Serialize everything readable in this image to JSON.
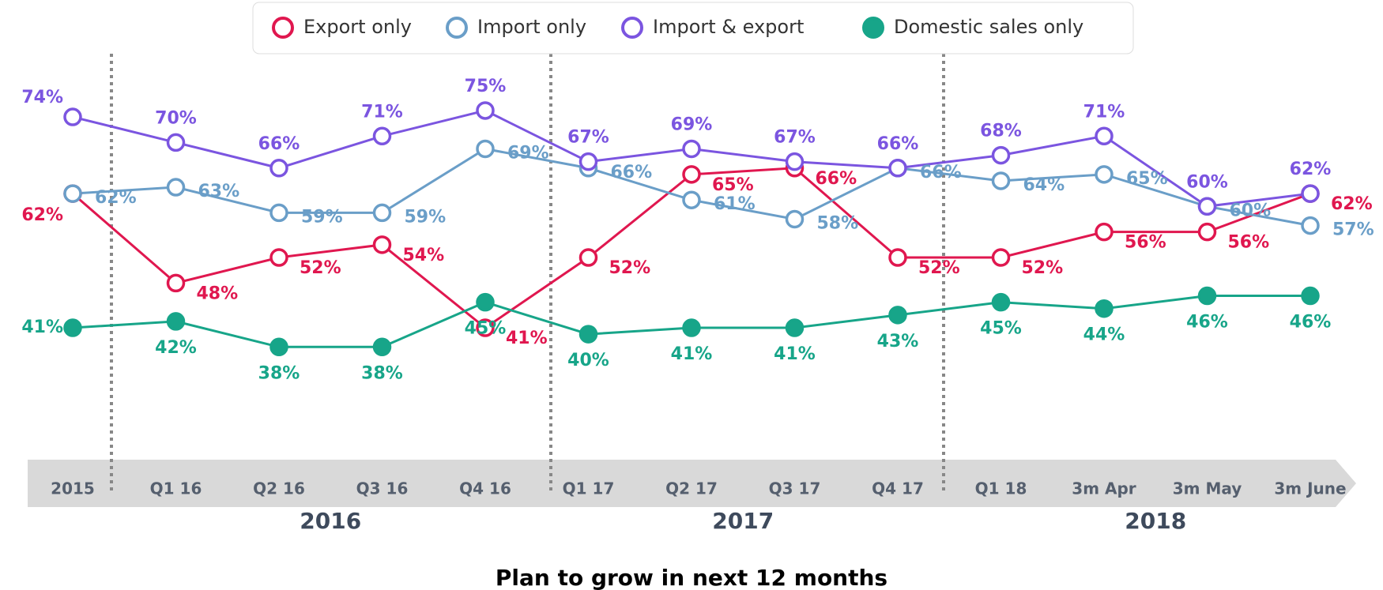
{
  "chart_data": {
    "type": "line",
    "title": "Plan to grow in next 12 months",
    "categories": [
      "2015",
      "Q1 16",
      "Q2 16",
      "Q3 16",
      "Q4 16",
      "Q1 17",
      "Q2 17",
      "Q3 17",
      "Q4 17",
      "Q1 18",
      "3m Apr",
      "3m May",
      "3m June"
    ],
    "groups": [
      "2016",
      "2017",
      "2018"
    ],
    "series": [
      {
        "name": "Export only",
        "color": "#e0174f",
        "filled": false,
        "values": [
          62,
          48,
          52,
          54,
          41,
          52,
          65,
          66,
          52,
          52,
          56,
          56,
          62
        ],
        "value_labels": [
          "62%",
          "48%",
          "52%",
          "54%",
          "41%",
          "52%",
          "65%",
          "66%",
          "52%",
          "52%",
          "56%",
          "56%",
          "62%"
        ]
      },
      {
        "name": "Import only",
        "color": "#6a9ec8",
        "filled": false,
        "values": [
          62,
          63,
          59,
          59,
          69,
          66,
          61,
          58,
          66,
          64,
          65,
          60,
          57
        ],
        "value_labels": [
          "62%",
          "63%",
          "59%",
          "59%",
          "69%",
          "66%",
          "61%",
          "58%",
          "66%",
          "64%",
          "65%",
          "60%",
          "57%"
        ]
      },
      {
        "name": "Import & export",
        "color": "#7b55e0",
        "filled": false,
        "values": [
          74,
          70,
          66,
          71,
          75,
          67,
          69,
          67,
          66,
          68,
          71,
          60,
          62
        ],
        "value_labels": [
          "74%",
          "70%",
          "66%",
          "71%",
          "75%",
          "67%",
          "69%",
          "67%",
          "66%",
          "68%",
          "71%",
          "60%",
          "62%"
        ]
      },
      {
        "name": "Domestic sales only",
        "color": "#17a589",
        "filled": true,
        "values": [
          41,
          42,
          38,
          38,
          45,
          40,
          41,
          41,
          43,
          45,
          44,
          46,
          46
        ],
        "value_labels": [
          "41%",
          "42%",
          "38%",
          "38%",
          "45%",
          "40%",
          "41%",
          "41%",
          "43%",
          "45%",
          "44%",
          "46%",
          "46%"
        ]
      }
    ]
  }
}
